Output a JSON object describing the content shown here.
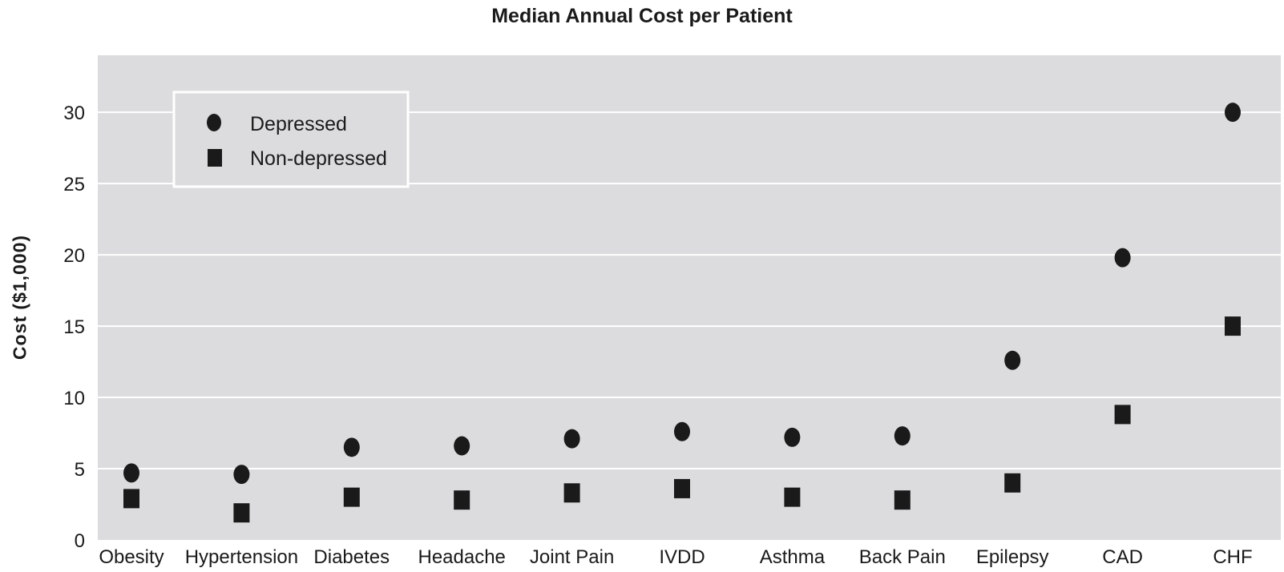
{
  "chart_data": {
    "type": "scatter",
    "title": "Median Annual Cost per Patient",
    "xlabel": "",
    "ylabel": "Cost ($1,000)",
    "ylim": [
      0,
      34
    ],
    "yticks": [
      0,
      5,
      10,
      15,
      20,
      25,
      30
    ],
    "grid": "horizontal",
    "legend_position": "top-left",
    "categories": [
      "Obesity",
      "Hypertension",
      "Diabetes",
      "Headache",
      "Joint Pain",
      "IVDD",
      "Asthma",
      "Back Pain",
      "Epilepsy",
      "CAD",
      "CHF"
    ],
    "series": [
      {
        "name": "Depressed",
        "marker": "circle",
        "values": [
          4.7,
          4.6,
          6.5,
          6.6,
          7.1,
          7.6,
          7.2,
          7.3,
          12.6,
          19.8,
          30.0
        ]
      },
      {
        "name": "Non-depressed",
        "marker": "square",
        "values": [
          2.9,
          1.9,
          3.0,
          2.8,
          3.3,
          3.6,
          3.0,
          2.8,
          4.0,
          8.8,
          15.0
        ]
      }
    ],
    "colors": {
      "plot_background": "#dcdcde",
      "grid": "#ffffff",
      "marker": "#1a1a1a"
    }
  }
}
